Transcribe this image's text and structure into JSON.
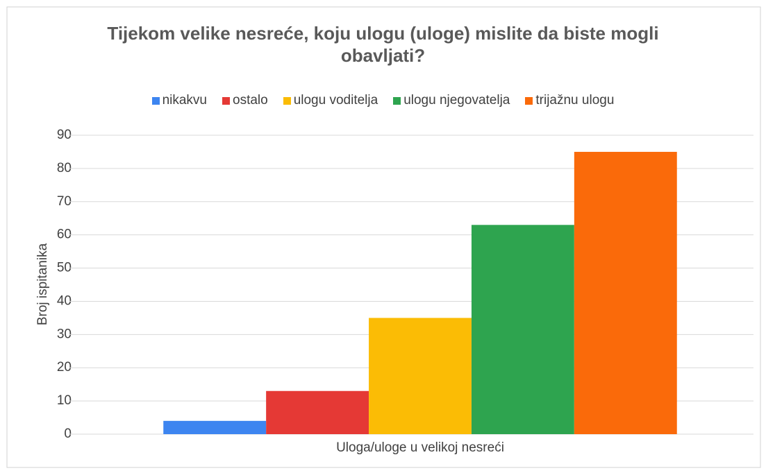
{
  "chart_data": {
    "type": "bar",
    "title": "Tijekom velike nesreće, koju ulogu (uloge) mislite da biste mogli obavljati?",
    "ylabel": "Broj ispitanika",
    "categories": [
      "Uloga/uloge u velikoj nesreći"
    ],
    "series": [
      {
        "name": "nikakvu",
        "color": "#3d85f0",
        "values": [
          4
        ]
      },
      {
        "name": "ostalo",
        "color": "#e53935",
        "values": [
          13
        ]
      },
      {
        "name": "ulogu voditelja",
        "color": "#fbbc05",
        "values": [
          35
        ]
      },
      {
        "name": "ulogu njegovatelja",
        "color": "#2ea44f",
        "values": [
          63
        ]
      },
      {
        "name": "trijažnu ulogu",
        "color": "#fa6a0a",
        "values": [
          85
        ]
      }
    ],
    "ylim": [
      0,
      90
    ],
    "yticks": [
      0,
      10,
      20,
      30,
      40,
      50,
      60,
      70,
      80,
      90
    ],
    "grid": true,
    "legend": "top"
  }
}
